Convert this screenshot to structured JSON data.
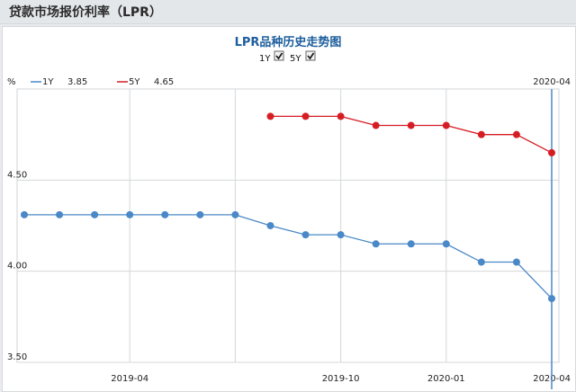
{
  "header": {
    "title": "贷款市场报价利率（LPR）"
  },
  "chart_data": {
    "type": "line",
    "title": "LPR品种历史走势图",
    "toggles": [
      {
        "label": "1Y",
        "checked": true
      },
      {
        "label": "5Y",
        "checked": true
      }
    ],
    "yunit": "%",
    "ylim": [
      3.5,
      5.0
    ],
    "yticks": [
      "3.50",
      "4.00",
      "4.50"
    ],
    "xticks": [
      "2019-04",
      "2019-10",
      "2020-01",
      "2020-04"
    ],
    "cursor_label": "2020-04",
    "legend": [
      {
        "name": "1Y",
        "value": "3.85",
        "color": "#4a88c7"
      },
      {
        "name": "5Y",
        "value": "4.65",
        "color": "#d61d24"
      }
    ],
    "x": [
      "2019-01",
      "2019-02",
      "2019-03",
      "2019-04",
      "2019-05",
      "2019-06",
      "2019-07",
      "2019-08",
      "2019-09",
      "2019-10",
      "2019-11",
      "2019-12",
      "2020-01",
      "2020-02",
      "2020-03",
      "2020-04"
    ],
    "series": [
      {
        "name": "1Y",
        "color": "#4a88c7",
        "values": [
          4.31,
          4.31,
          4.31,
          4.31,
          4.31,
          4.31,
          4.31,
          4.25,
          4.2,
          4.2,
          4.15,
          4.15,
          4.15,
          4.05,
          4.05,
          3.85
        ]
      },
      {
        "name": "5Y",
        "color": "#d61d24",
        "values": [
          null,
          null,
          null,
          null,
          null,
          null,
          null,
          4.85,
          4.85,
          4.85,
          4.8,
          4.8,
          4.8,
          4.75,
          4.75,
          4.65
        ]
      }
    ]
  }
}
